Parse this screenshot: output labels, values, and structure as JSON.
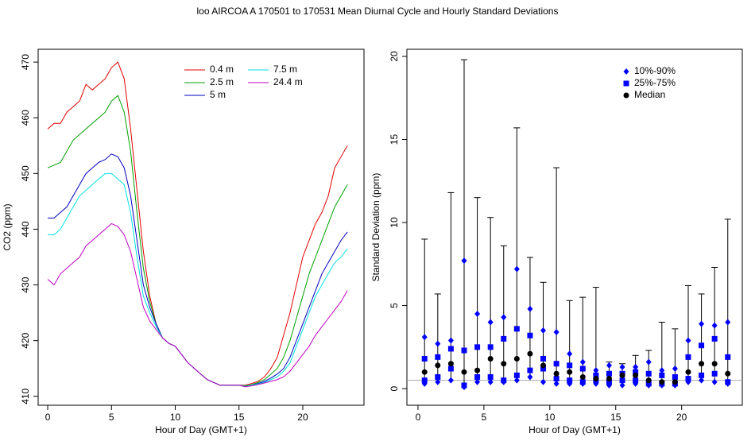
{
  "title": "loo   AIRCOA A   170501 to 170531   Mean Diurnal Cycle and Hourly Standard Deviations",
  "chart_data": [
    {
      "type": "line",
      "xlabel": "Hour of Day (GMT+1)",
      "ylabel": "CO2 (ppm)",
      "xlim": [
        -0.75,
        24.8
      ],
      "ylim": [
        408.4,
        472.3
      ],
      "xticks": [
        0,
        5,
        10,
        15,
        20
      ],
      "yticks": [
        410,
        420,
        430,
        440,
        450,
        460,
        470
      ],
      "x": [
        0,
        0.5,
        1,
        1.5,
        2,
        2.5,
        3,
        3.5,
        4,
        4.5,
        5,
        5.5,
        6,
        6.5,
        7,
        7.5,
        8,
        8.5,
        9,
        9.5,
        10,
        10.5,
        11,
        11.5,
        12,
        12.5,
        13,
        13.5,
        14,
        14.5,
        15,
        15.5,
        16,
        16.5,
        17,
        17.5,
        18,
        18.5,
        19,
        19.5,
        20,
        20.5,
        21,
        21.5,
        22,
        22.5,
        23,
        23.5
      ],
      "series": [
        {
          "name": "0.4 m",
          "color": "#e00000",
          "values": [
            458,
            459,
            459,
            461,
            462,
            463,
            466,
            465,
            466,
            467,
            469,
            470,
            467,
            458,
            447,
            436,
            428,
            423,
            420.5,
            419.5,
            419,
            417.5,
            416,
            415,
            414,
            413,
            412.5,
            412,
            412,
            412,
            412,
            412,
            412.3,
            412.7,
            413.5,
            415,
            417,
            421,
            425,
            430,
            435,
            438,
            441,
            443,
            446,
            451,
            453,
            455
          ]
        },
        {
          "name": "2.5 m",
          "color": "#00a000",
          "values": [
            451,
            451.5,
            452,
            454,
            456,
            457,
            458,
            459,
            460,
            461,
            463,
            464,
            461,
            454,
            443,
            433,
            427,
            423,
            420.5,
            419.5,
            419,
            417.5,
            416,
            415,
            414,
            413,
            412.5,
            412,
            412,
            412,
            412,
            411.9,
            412.1,
            412.5,
            413,
            414,
            415,
            417,
            420,
            424,
            428,
            432,
            435,
            438,
            441,
            444,
            446,
            448
          ]
        },
        {
          "name": "5 m",
          "color": "#0000c0",
          "values": [
            442,
            442,
            443,
            444,
            446,
            448,
            450,
            451,
            452,
            452.5,
            453.5,
            453,
            451,
            446,
            438,
            430,
            426,
            423,
            420.5,
            419.5,
            419,
            417.5,
            416,
            415,
            414,
            413,
            412.5,
            412,
            412,
            412,
            412,
            411.8,
            412,
            412.3,
            412.7,
            413.3,
            414,
            415,
            417,
            420,
            423,
            426,
            429,
            432,
            434,
            436,
            438,
            439.5
          ]
        },
        {
          "name": "7.5 m",
          "color": "#00e0e0",
          "values": [
            439,
            439,
            440,
            442,
            444,
            446,
            447,
            448,
            449,
            450,
            450,
            449,
            448,
            443,
            435,
            428,
            425,
            422.5,
            420.5,
            419.5,
            419,
            417.5,
            416,
            415,
            414,
            413,
            412.5,
            412,
            412,
            412,
            412,
            411.8,
            412,
            412.2,
            412.5,
            413,
            413.5,
            414.5,
            416,
            419,
            422,
            425,
            428,
            430,
            432,
            434,
            435,
            436.5
          ]
        },
        {
          "name": "24.4 m",
          "color": "#c000c0",
          "values": [
            431,
            430,
            432,
            433,
            434,
            435,
            437,
            438,
            439,
            440,
            441,
            440.5,
            439,
            436,
            431,
            426,
            423.5,
            422,
            420.5,
            419.5,
            419,
            417.5,
            416,
            415,
            414,
            413,
            412.5,
            412,
            412,
            412,
            412,
            411.7,
            411.9,
            412.1,
            412.4,
            412.7,
            413,
            413.5,
            414.5,
            416,
            417.5,
            419,
            421,
            422.5,
            424,
            425.5,
            427,
            429
          ]
        }
      ]
    },
    {
      "type": "quantile",
      "xlabel": "Hour of Day (GMT+1)",
      "ylabel": "Standard Deviation (ppm)",
      "xlim": [
        -0.84,
        24.6
      ],
      "ylim": [
        -1.0,
        20.43
      ],
      "xticks": [
        0,
        5,
        10,
        15,
        20
      ],
      "yticks": [
        0,
        5,
        10,
        15,
        20
      ],
      "hline": 0.5,
      "x": [
        0.5,
        1.5,
        2.5,
        3.5,
        4.5,
        5.5,
        6.5,
        7.5,
        8.5,
        9.5,
        10.5,
        11.5,
        12.5,
        13.5,
        14.5,
        15.5,
        16.5,
        17.5,
        18.5,
        19.5,
        20.5,
        21.5,
        22.5,
        23.5
      ],
      "max": [
        9.0,
        5.7,
        11.8,
        19.8,
        11.5,
        10.3,
        8.6,
        15.7,
        7.9,
        6.4,
        13.3,
        5.3,
        5.5,
        6.1,
        1.6,
        1.5,
        2.0,
        2.3,
        4.0,
        3.6,
        6.2,
        5.7,
        7.3,
        10.2
      ],
      "series": [
        {
          "name": "10%-90%",
          "color": "#0000ff",
          "marker": "diamond",
          "low": [
            0.3,
            0.4,
            0.5,
            0.1,
            0.4,
            0.4,
            0.4,
            0.5,
            0.7,
            0.4,
            0.3,
            0.3,
            0.3,
            0.3,
            0.2,
            0.2,
            0.3,
            0.2,
            0.2,
            0.2,
            0.4,
            0.5,
            0.4,
            0.3
          ],
          "high": [
            3.1,
            2.7,
            2.9,
            7.7,
            4.5,
            4.0,
            4.3,
            7.2,
            4.8,
            3.5,
            3.4,
            2.1,
            1.6,
            1.1,
            1.4,
            1.3,
            1.3,
            1.6,
            1.1,
            1.2,
            2.9,
            3.9,
            3.8,
            4.0
          ]
        },
        {
          "name": "25%-75%",
          "color": "#0000ff",
          "marker": "square",
          "low": [
            0.5,
            0.7,
            1.2,
            0.2,
            0.7,
            0.7,
            0.5,
            0.8,
            1.1,
            1.2,
            0.6,
            0.5,
            0.4,
            0.5,
            0.4,
            0.5,
            0.5,
            0.3,
            0.3,
            0.3,
            0.6,
            0.8,
            0.9,
            0.4
          ],
          "high": [
            1.8,
            1.9,
            2.4,
            2.3,
            2.5,
            2.5,
            3.0,
            3.6,
            3.2,
            1.8,
            1.5,
            1.4,
            1.2,
            0.8,
            0.9,
            0.9,
            1.0,
            0.9,
            0.8,
            0.7,
            1.9,
            2.6,
            3.0,
            1.9
          ]
        },
        {
          "name": "Median",
          "color": "#000000",
          "marker": "circle",
          "values": [
            1.0,
            1.4,
            1.5,
            1.0,
            1.1,
            1.8,
            1.5,
            1.8,
            2.1,
            1.4,
            0.9,
            1.0,
            0.7,
            0.6,
            0.6,
            0.8,
            0.8,
            0.5,
            0.4,
            0.4,
            1.0,
            1.5,
            1.5,
            0.9
          ]
        }
      ]
    }
  ]
}
